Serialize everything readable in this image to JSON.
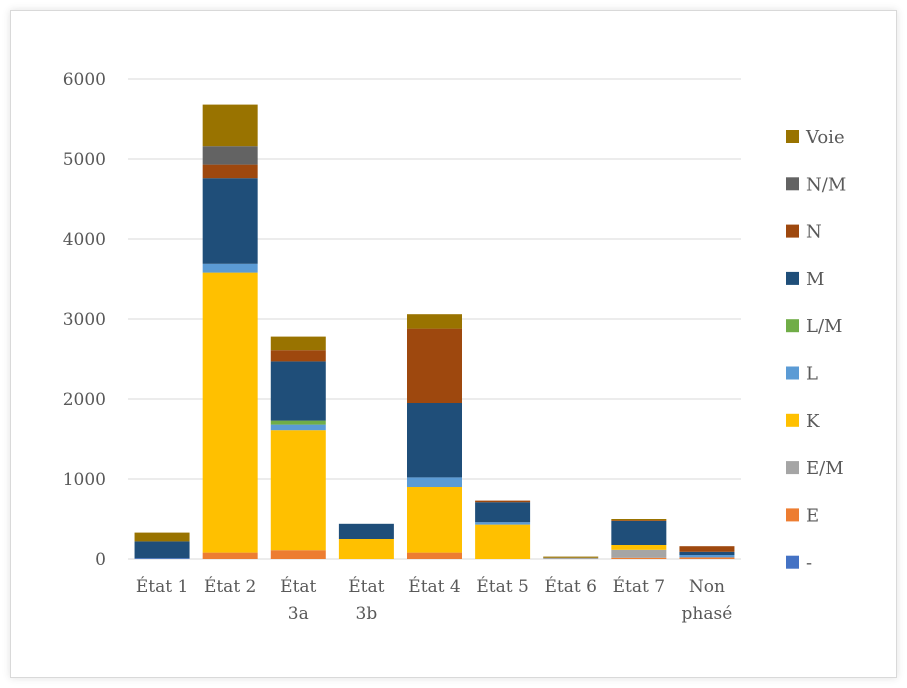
{
  "chart_data": {
    "type": "bar",
    "stacked": true,
    "categories": [
      [
        "État 1"
      ],
      [
        "État 2"
      ],
      [
        "État",
        "3a"
      ],
      [
        "État",
        "3b"
      ],
      [
        "État 4"
      ],
      [
        "État 5"
      ],
      [
        "État 6"
      ],
      [
        "État 7"
      ],
      [
        "Non",
        "phasé"
      ]
    ],
    "ylim": [
      0,
      6000
    ],
    "yticks": [
      0,
      1000,
      2000,
      3000,
      4000,
      5000,
      6000
    ],
    "grid": true,
    "legend_position": "right",
    "series": [
      {
        "name": "-",
        "color": "#4472c4",
        "values": [
          10,
          0,
          0,
          0,
          0,
          0,
          0,
          0,
          0
        ]
      },
      {
        "name": "E",
        "color": "#ed7d31",
        "values": [
          0,
          80,
          110,
          0,
          80,
          0,
          0,
          15,
          20
        ]
      },
      {
        "name": "E/M",
        "color": "#a5a5a5",
        "values": [
          0,
          0,
          0,
          0,
          0,
          0,
          15,
          100,
          0
        ]
      },
      {
        "name": "K",
        "color": "#ffc000",
        "values": [
          0,
          3500,
          1500,
          250,
          820,
          430,
          0,
          60,
          0
        ]
      },
      {
        "name": "L",
        "color": "#5b9bd5",
        "values": [
          0,
          110,
          70,
          0,
          120,
          30,
          0,
          0,
          30
        ]
      },
      {
        "name": "L/M",
        "color": "#70ad47",
        "values": [
          0,
          0,
          50,
          0,
          0,
          0,
          0,
          0,
          0
        ]
      },
      {
        "name": "M",
        "color": "#1f4e79",
        "values": [
          210,
          1070,
          740,
          190,
          930,
          250,
          0,
          300,
          40
        ]
      },
      {
        "name": "N",
        "color": "#9e480e",
        "values": [
          0,
          170,
          140,
          0,
          930,
          20,
          0,
          10,
          70
        ]
      },
      {
        "name": "N/M",
        "color": "#636363",
        "values": [
          0,
          230,
          0,
          0,
          0,
          0,
          0,
          0,
          0
        ]
      },
      {
        "name": "Voie",
        "color": "#997300",
        "values": [
          110,
          520,
          170,
          0,
          180,
          0,
          15,
          15,
          0
        ]
      }
    ]
  }
}
